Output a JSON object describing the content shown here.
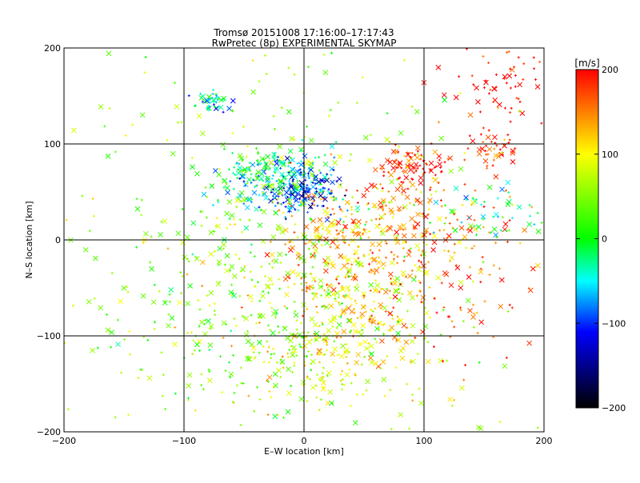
{
  "chart_data": {
    "type": "scatter",
    "title": "Tromsø 20151008 17:16:00–17:17:43",
    "subtitle": "RwPretec (8p) EXPERIMENTAL SKYMAP",
    "xlabel": "E–W location [km]",
    "ylabel": "N–S location [km]",
    "xlim": [
      -200,
      200
    ],
    "ylim": [
      -200,
      200
    ],
    "xticks": [
      -200,
      -100,
      0,
      100,
      200
    ],
    "yticks": [
      -200,
      -100,
      0,
      100,
      200
    ],
    "xtick_labels": [
      "−200",
      "−100",
      "0",
      "100",
      "200"
    ],
    "ytick_labels": [
      "−200",
      "−100",
      "0",
      "100",
      "200"
    ],
    "grid": true,
    "markers": [
      "x",
      "+"
    ],
    "colorbar": {
      "label": "[m/s]",
      "range": [
        -200,
        200
      ],
      "ticks": [
        200,
        100,
        0,
        -100,
        -200
      ],
      "tick_labels": [
        "200",
        "100",
        "0",
        "−100",
        "−200"
      ],
      "colors": [
        "#ff0000",
        "#ffff00",
        "#00ff00",
        "#00ffff",
        "#0000ff",
        "#000000"
      ]
    },
    "clusters": [
      {
        "x": -20,
        "y": 60,
        "spread_x": 25,
        "spread_y": 18,
        "velocity": -60,
        "count": 160
      },
      {
        "x": 0,
        "y": 50,
        "spread_x": 15,
        "spread_y": 12,
        "velocity": -110,
        "count": 130
      },
      {
        "x": -30,
        "y": 75,
        "spread_x": 20,
        "spread_y": 12,
        "velocity": 0,
        "count": 90
      },
      {
        "x": -75,
        "y": 145,
        "spread_x": 8,
        "spread_y": 6,
        "velocity": -40,
        "count": 50
      },
      {
        "x": 90,
        "y": 75,
        "spread_x": 15,
        "spread_y": 10,
        "velocity": 200,
        "count": 90
      },
      {
        "x": 160,
        "y": 95,
        "spread_x": 10,
        "spread_y": 10,
        "velocity": 190,
        "count": 40
      },
      {
        "x": 160,
        "y": 165,
        "spread_x": 25,
        "spread_y": 25,
        "velocity": 200,
        "count": 70
      },
      {
        "x": 50,
        "y": 10,
        "spread_x": 40,
        "spread_y": 30,
        "velocity": 140,
        "count": 240
      },
      {
        "x": 40,
        "y": -60,
        "spread_x": 35,
        "spread_y": 30,
        "velocity": 110,
        "count": 220
      },
      {
        "x": 20,
        "y": -120,
        "spread_x": 40,
        "spread_y": 25,
        "velocity": 90,
        "count": 160
      },
      {
        "x": -60,
        "y": -60,
        "spread_x": 50,
        "spread_y": 60,
        "velocity": 40,
        "count": 220
      },
      {
        "x": 120,
        "y": -20,
        "spread_x": 40,
        "spread_y": 50,
        "velocity": 170,
        "count": 160
      },
      {
        "x": 160,
        "y": 30,
        "spread_x": 25,
        "spread_y": 15,
        "velocity": -30,
        "count": 45
      },
      {
        "x": 0,
        "y": 0,
        "spread_x": 120,
        "spread_y": 120,
        "velocity": 60,
        "count": 420
      }
    ]
  }
}
